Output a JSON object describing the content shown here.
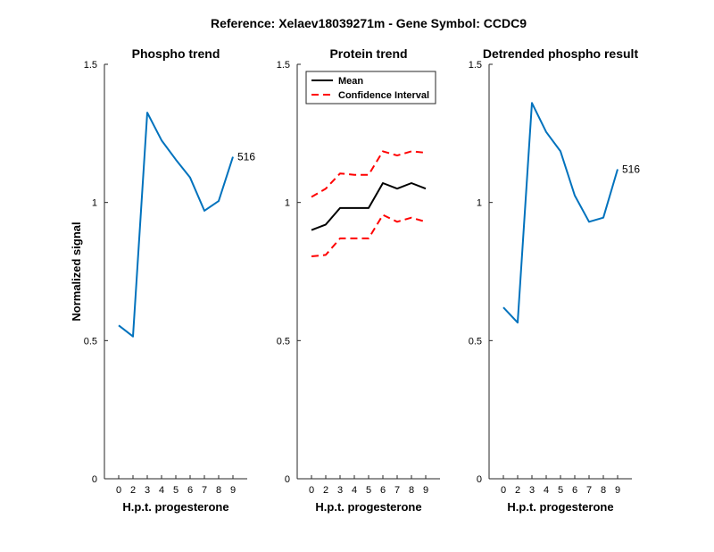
{
  "figure": {
    "title": "Reference:  Xelaev18039271m - Gene Symbol:  CCDC9"
  },
  "chart_data": [
    {
      "type": "line",
      "title": "Phospho trend",
      "xlabel": "H.p.t. progesterone",
      "ylabel": "Normalized signal",
      "x_tick_labels": [
        "0",
        "2",
        "3",
        "4",
        "5",
        "6",
        "7",
        "8",
        "9"
      ],
      "y_ticks": [
        0,
        0.5,
        1,
        1.5
      ],
      "y_tick_labels": [
        "0",
        "0.5",
        "1",
        "1.5"
      ],
      "ylim": [
        0,
        1.5
      ],
      "series": [
        {
          "values": [
            0.555,
            0.515,
            1.325,
            1.225,
            1.155,
            1.09,
            0.97,
            1.005,
            1.165
          ],
          "color": "#0072BD",
          "style": "solid"
        }
      ],
      "annotation": {
        "text": "516",
        "at_index": 8
      }
    },
    {
      "type": "line",
      "title": "Protein trend",
      "xlabel": "H.p.t. progesterone",
      "ylabel": "",
      "x_tick_labels": [
        "0",
        "2",
        "3",
        "4",
        "5",
        "6",
        "7",
        "8",
        "9"
      ],
      "y_ticks": [
        0,
        0.5,
        1,
        1.5
      ],
      "y_tick_labels": [
        "0",
        "0.5",
        "1",
        "1.5"
      ],
      "ylim": [
        0,
        1.5
      ],
      "legend": {
        "placement": "top-left",
        "entries": [
          "Mean",
          "Confidence Interval"
        ]
      },
      "series": [
        {
          "name": "Mean",
          "values": [
            0.9,
            0.92,
            0.98,
            0.98,
            0.98,
            1.07,
            1.05,
            1.07,
            1.05
          ],
          "color": "#000000",
          "style": "solid"
        },
        {
          "name": "Confidence Interval",
          "values": [
            1.02,
            1.05,
            1.105,
            1.1,
            1.1,
            1.185,
            1.17,
            1.185,
            1.18
          ],
          "color": "#ff0000",
          "style": "dashed"
        },
        {
          "name": "Confidence Interval",
          "values": [
            0.805,
            0.81,
            0.87,
            0.87,
            0.87,
            0.955,
            0.93,
            0.945,
            0.93
          ],
          "color": "#ff0000",
          "style": "dashed"
        }
      ]
    },
    {
      "type": "line",
      "title": "Detrended phospho result",
      "xlabel": "H.p.t. progesterone",
      "ylabel": "",
      "x_tick_labels": [
        "0",
        "2",
        "3",
        "4",
        "5",
        "6",
        "7",
        "8",
        "9"
      ],
      "y_ticks": [
        0,
        0.5,
        1,
        1.5
      ],
      "y_tick_labels": [
        "0",
        "0.5",
        "1",
        "1.5"
      ],
      "ylim": [
        0,
        1.5
      ],
      "series": [
        {
          "values": [
            0.62,
            0.565,
            1.36,
            1.255,
            1.185,
            1.025,
            0.93,
            0.945,
            1.12
          ],
          "color": "#0072BD",
          "style": "solid"
        }
      ],
      "annotation": {
        "text": "516",
        "at_index": 8
      }
    }
  ]
}
